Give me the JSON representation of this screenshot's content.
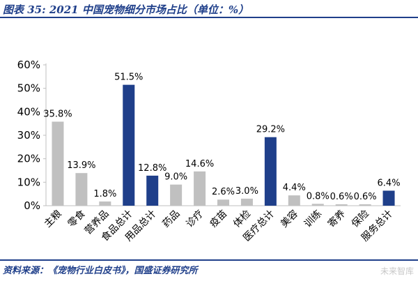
{
  "header": {
    "title": "图表 35:  2021 中国宠物细分市场占比（单位：%）"
  },
  "footer": {
    "source": "资料来源：《宠物行业白皮书》，国盛证券研究所",
    "watermark": "未来智库"
  },
  "colors": {
    "total_bar": "#1f3f8a",
    "item_bar": "#c0c0c0",
    "accent": "#1f3f8a"
  },
  "chart_data": {
    "type": "bar",
    "categories": [
      "主粮",
      "零食",
      "营养品",
      "食品总计",
      "用品总计",
      "药品",
      "诊疗",
      "疫苗",
      "体检",
      "医疗总计",
      "美容",
      "训练",
      "寄养",
      "保险",
      "服务总计"
    ],
    "values": [
      35.8,
      13.9,
      1.8,
      51.5,
      12.8,
      9.0,
      14.6,
      2.6,
      3.0,
      29.2,
      4.4,
      0.8,
      0.6,
      0.6,
      6.4
    ],
    "value_labels": [
      "35.8%",
      "13.9%",
      "1.8%",
      "51.5%",
      "12.8%",
      "9.0%",
      "14.6%",
      "2.6%",
      "3.0%",
      "29.2%",
      "4.4%",
      "0.8%",
      "0.6%",
      "0.6%",
      "6.4%"
    ],
    "highlight": [
      false,
      false,
      false,
      true,
      true,
      false,
      false,
      false,
      false,
      true,
      false,
      false,
      false,
      false,
      true
    ],
    "yticks": [
      "0%",
      "10%",
      "20%",
      "30%",
      "40%",
      "50%",
      "60%"
    ],
    "ylim": [
      0,
      60
    ],
    "grid": false,
    "title": "",
    "xlabel": "",
    "ylabel": ""
  }
}
